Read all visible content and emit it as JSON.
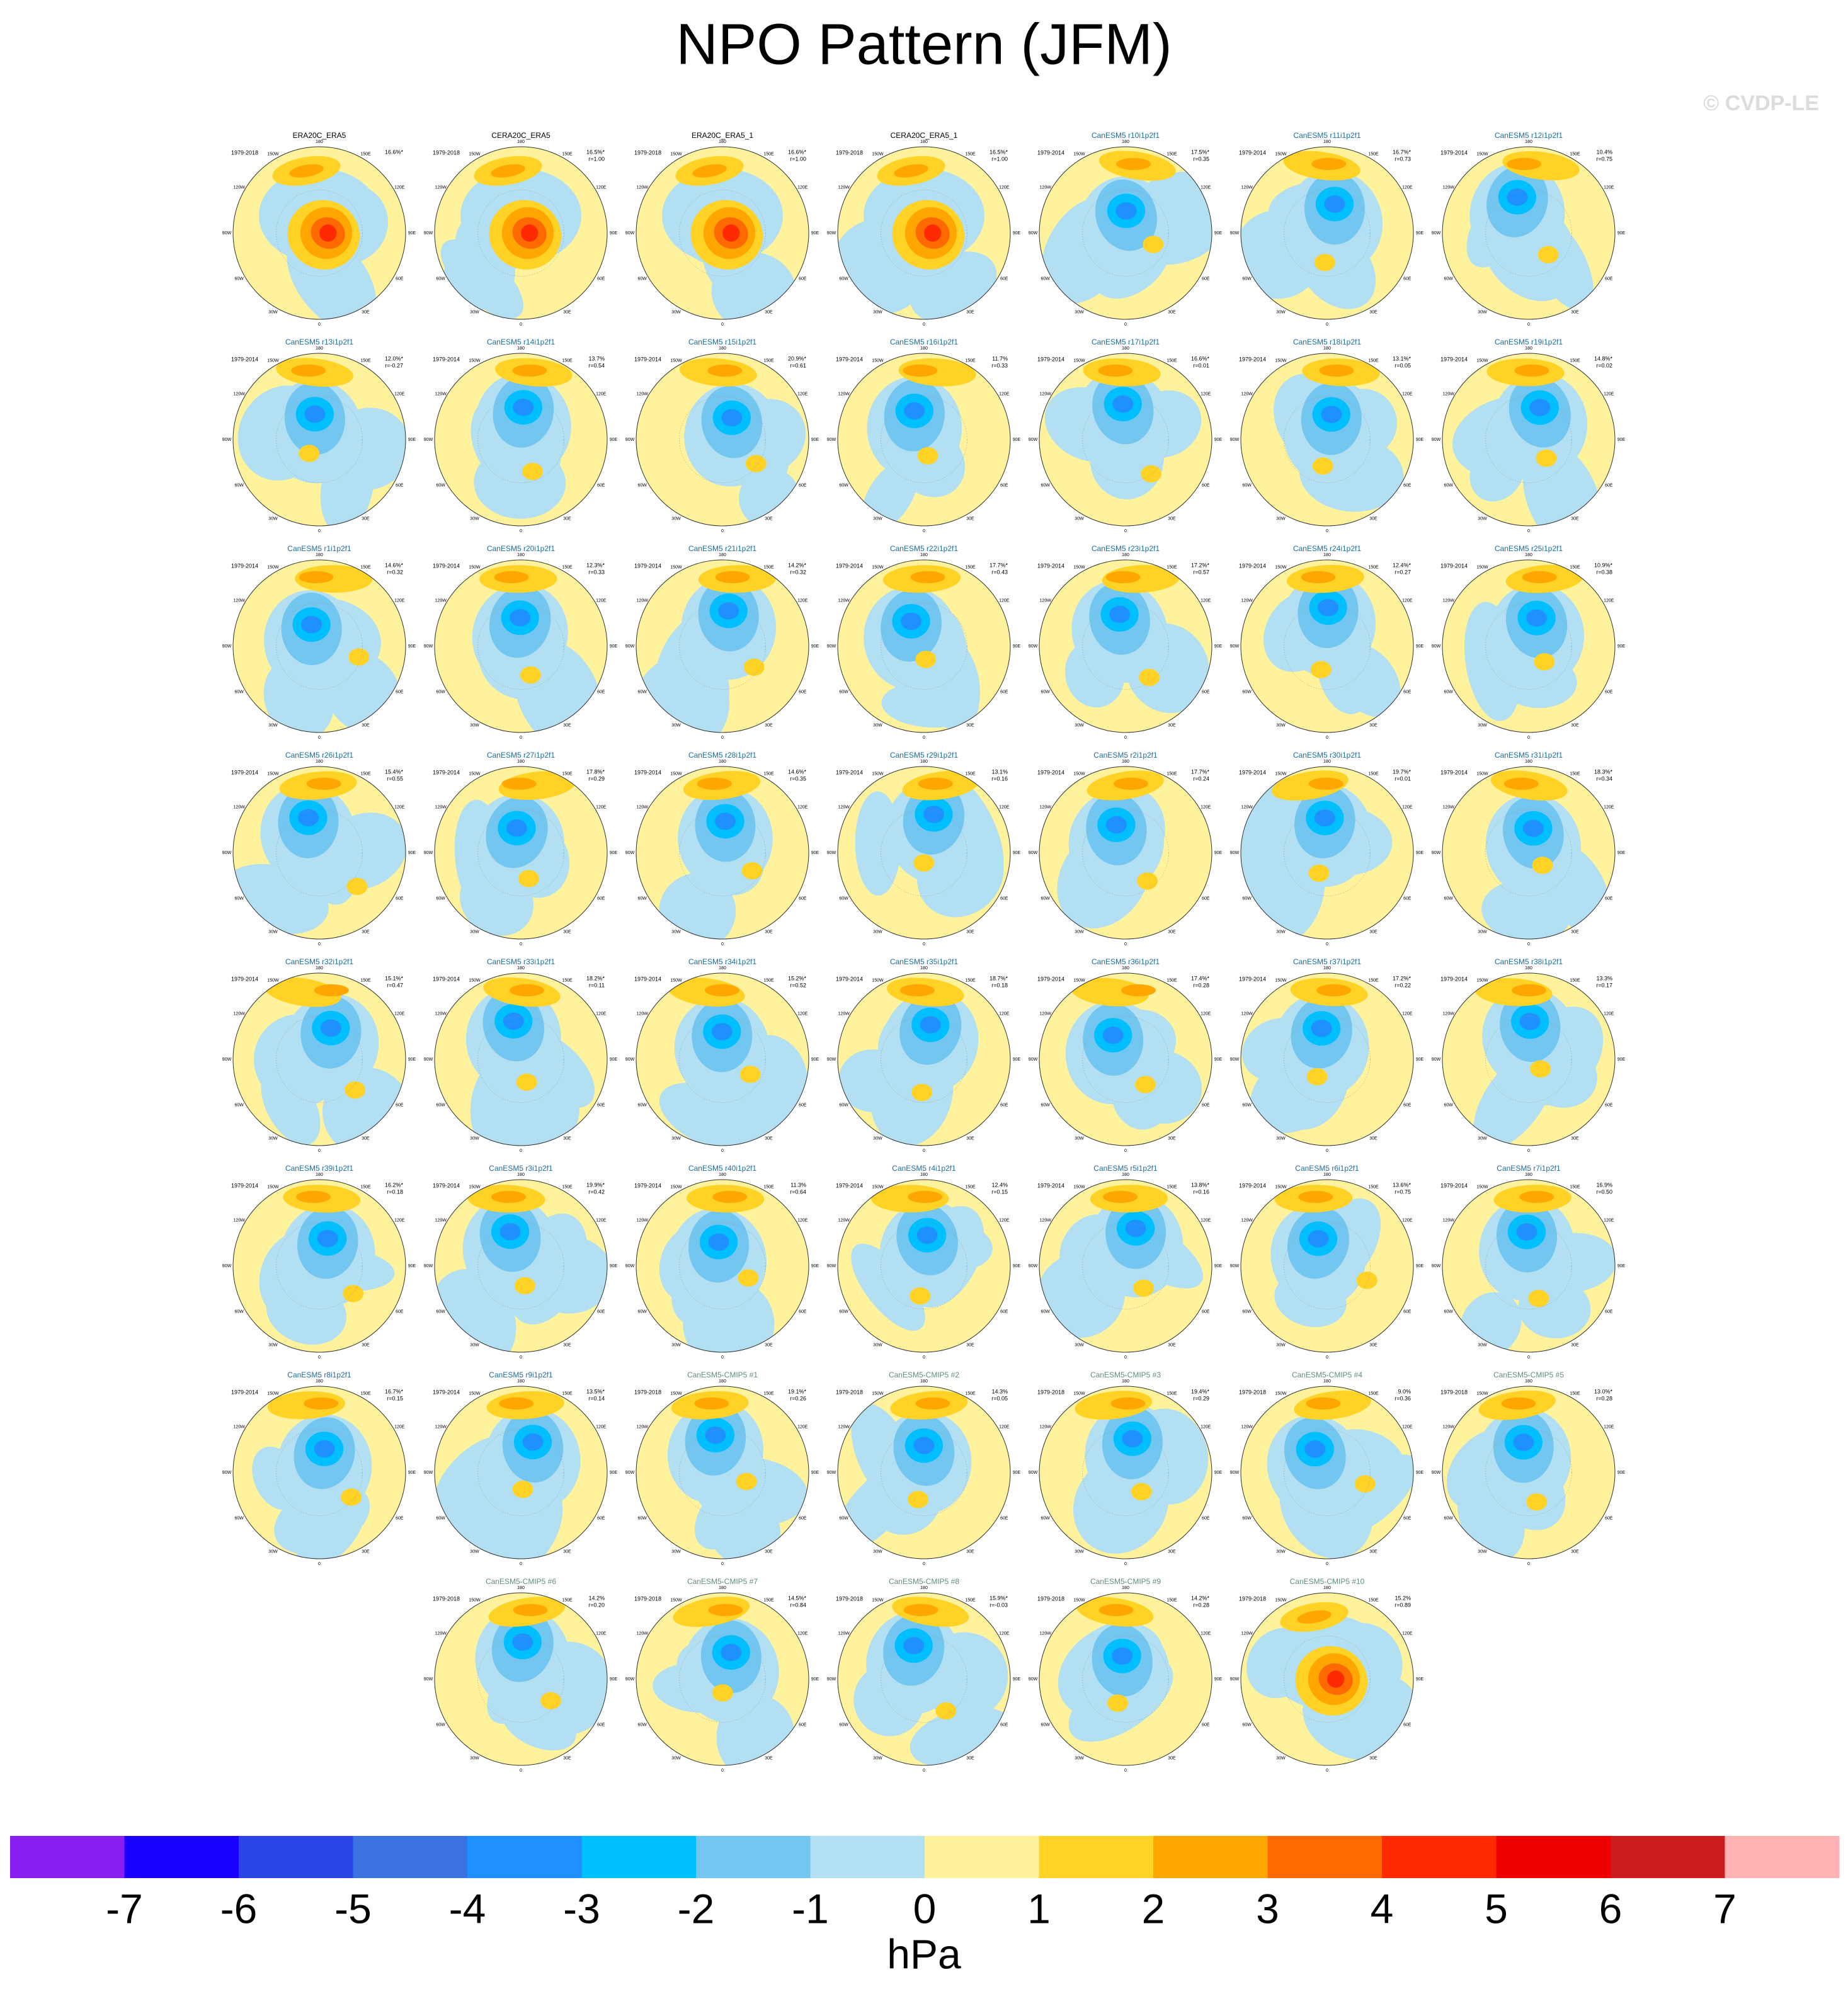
{
  "title": "NPO Pattern (JFM)",
  "copyright": "© CVDP-LE",
  "lon_labels": [
    "180",
    "150E",
    "120E",
    "90E",
    "60E",
    "30E",
    "0",
    "30W",
    "60W",
    "90W",
    "120W",
    "150W"
  ],
  "panels": [
    {
      "title": "ERA20C_ERA5",
      "color": "#000000",
      "years": "1979-2018",
      "pct": "16.6%*"
    },
    {
      "title": "CERA20C_ERA5",
      "color": "#000000",
      "years": "1979-2018",
      "pct": "16.5%*",
      "r": "r=1.00"
    },
    {
      "title": "ERA20C_ERA5_1",
      "color": "#000000",
      "years": "1979-2018",
      "pct": "16.6%*",
      "r": "r=1.00"
    },
    {
      "title": "CERA20C_ERA5_1",
      "color": "#000000",
      "years": "1979-2018",
      "pct": "16.5%*",
      "r": "r=1.00"
    },
    {
      "title": "CanESM5 r10i1p2f1",
      "color": "#1f6e9c",
      "years": "1979-2014",
      "pct": "17.5%*",
      "r": "r=0.35"
    },
    {
      "title": "CanESM5 r11i1p2f1",
      "color": "#1f6e9c",
      "years": "1979-2014",
      "pct": "16.7%*",
      "r": "r=0.73"
    },
    {
      "title": "CanESM5 r12i1p2f1",
      "color": "#1f6e9c",
      "years": "1979-2014",
      "pct": "10.4%",
      "r": "r=0.75"
    },
    {
      "title": "CanESM5 r13i1p2f1",
      "color": "#1f6e9c",
      "years": "1979-2014",
      "pct": "12.0%*",
      "r": "r=-0.27"
    },
    {
      "title": "CanESM5 r14i1p2f1",
      "color": "#1f6e9c",
      "years": "1979-2014",
      "pct": "13.7%",
      "r": "r=0.54"
    },
    {
      "title": "CanESM5 r15i1p2f1",
      "color": "#1f6e9c",
      "years": "1979-2014",
      "pct": "20.9%*",
      "r": "r=0.61"
    },
    {
      "title": "CanESM5 r16i1p2f1",
      "color": "#1f6e9c",
      "years": "1979-2014",
      "pct": "11.7%",
      "r": "r=0.33"
    },
    {
      "title": "CanESM5 r17i1p2f1",
      "color": "#1f6e9c",
      "years": "1979-2014",
      "pct": "16.6%*",
      "r": "r=0.01"
    },
    {
      "title": "CanESM5 r18i1p2f1",
      "color": "#1f6e9c",
      "years": "1979-2014",
      "pct": "13.1%*",
      "r": "r=0.05"
    },
    {
      "title": "CanESM5 r19i1p2f1",
      "color": "#1f6e9c",
      "years": "1979-2014",
      "pct": "14.8%*",
      "r": "r=0.02"
    },
    {
      "title": "CanESM5 r1i1p2f1",
      "color": "#1f6e9c",
      "years": "1979-2014",
      "pct": "14.6%*",
      "r": "r=0.32"
    },
    {
      "title": "CanESM5 r20i1p2f1",
      "color": "#1f6e9c",
      "years": "1979-2014",
      "pct": "12.3%*",
      "r": "r=0.33"
    },
    {
      "title": "CanESM5 r21i1p2f1",
      "color": "#1f6e9c",
      "years": "1979-2014",
      "pct": "14.2%*",
      "r": "r=0.32"
    },
    {
      "title": "CanESM5 r22i1p2f1",
      "color": "#1f6e9c",
      "years": "1979-2014",
      "pct": "17.7%*",
      "r": "r=0.43"
    },
    {
      "title": "CanESM5 r23i1p2f1",
      "color": "#1f6e9c",
      "years": "1979-2014",
      "pct": "17.2%*",
      "r": "r=0.57"
    },
    {
      "title": "CanESM5 r24i1p2f1",
      "color": "#1f6e9c",
      "years": "1979-2014",
      "pct": "12.4%*",
      "r": "r=0.27"
    },
    {
      "title": "CanESM5 r25i1p2f1",
      "color": "#1f6e9c",
      "years": "1979-2014",
      "pct": "10.9%*",
      "r": "r=0.38"
    },
    {
      "title": "CanESM5 r26i1p2f1",
      "color": "#1f6e9c",
      "years": "1979-2014",
      "pct": "15.4%*",
      "r": "r=0.55"
    },
    {
      "title": "CanESM5 r27i1p2f1",
      "color": "#1f6e9c",
      "years": "1979-2014",
      "pct": "17.8%*",
      "r": "r=0.29"
    },
    {
      "title": "CanESM5 r28i1p2f1",
      "color": "#1f6e9c",
      "years": "1979-2014",
      "pct": "14.6%*",
      "r": "r=0.35"
    },
    {
      "title": "CanESM5 r29i1p2f1",
      "color": "#1f6e9c",
      "years": "1979-2014",
      "pct": "13.1%",
      "r": "r=0.16"
    },
    {
      "title": "CanESM5 r2i1p2f1",
      "color": "#1f6e9c",
      "years": "1979-2014",
      "pct": "17.7%*",
      "r": "r=0.24"
    },
    {
      "title": "CanESM5 r30i1p2f1",
      "color": "#1f6e9c",
      "years": "1979-2014",
      "pct": "19.7%*",
      "r": "r=0.01"
    },
    {
      "title": "CanESM5 r31i1p2f1",
      "color": "#1f6e9c",
      "years": "1979-2014",
      "pct": "18.3%*",
      "r": "r=0.34"
    },
    {
      "title": "CanESM5 r32i1p2f1",
      "color": "#1f6e9c",
      "years": "1979-2014",
      "pct": "15.1%*",
      "r": "r=0.47"
    },
    {
      "title": "CanESM5 r33i1p2f1",
      "color": "#1f6e9c",
      "years": "1979-2014",
      "pct": "18.2%*",
      "r": "r=0.11"
    },
    {
      "title": "CanESM5 r34i1p2f1",
      "color": "#1f6e9c",
      "years": "1979-2014",
      "pct": "15.2%*",
      "r": "r=0.52"
    },
    {
      "title": "CanESM5 r35i1p2f1",
      "color": "#1f6e9c",
      "years": "1979-2014",
      "pct": "18.7%*",
      "r": "r=0.18"
    },
    {
      "title": "CanESM5 r36i1p2f1",
      "color": "#1f6e9c",
      "years": "1979-2014",
      "pct": "17.4%*",
      "r": "r=0.28"
    },
    {
      "title": "CanESM5 r37i1p2f1",
      "color": "#1f6e9c",
      "years": "1979-2014",
      "pct": "17.2%*",
      "r": "r=0.22"
    },
    {
      "title": "CanESM5 r38i1p2f1",
      "color": "#1f6e9c",
      "years": "1979-2014",
      "pct": "13.3%",
      "r": "r=0.17"
    },
    {
      "title": "CanESM5 r39i1p2f1",
      "color": "#1f6e9c",
      "years": "1979-2014",
      "pct": "16.2%*",
      "r": "r=0.18"
    },
    {
      "title": "CanESM5 r3i1p2f1",
      "color": "#1f6e9c",
      "years": "1979-2014",
      "pct": "19.9%*",
      "r": "r=0.42"
    },
    {
      "title": "CanESM5 r40i1p2f1",
      "color": "#1f6e9c",
      "years": "1979-2014",
      "pct": "11.3%",
      "r": "r=0.64"
    },
    {
      "title": "CanESM5 r4i1p2f1",
      "color": "#1f6e9c",
      "years": "1979-2014",
      "pct": "12.4%",
      "r": "r=0.15"
    },
    {
      "title": "CanESM5 r5i1p2f1",
      "color": "#1f6e9c",
      "years": "1979-2014",
      "pct": "13.8%*",
      "r": "r=0.16"
    },
    {
      "title": "CanESM5 r6i1p2f1",
      "color": "#1f6e9c",
      "years": "1979-2014",
      "pct": "13.6%*",
      "r": "r=0.75"
    },
    {
      "title": "CanESM5 r7i1p2f1",
      "color": "#1f6e9c",
      "years": "1979-2014",
      "pct": "16.9%",
      "r": "r=0.50"
    },
    {
      "title": "CanESM5 r8i1p2f1",
      "color": "#1f6e9c",
      "years": "1979-2014",
      "pct": "16.7%*",
      "r": "r=0.15"
    },
    {
      "title": "CanESM5 r9i1p2f1",
      "color": "#1f6e9c",
      "years": "1979-2014",
      "pct": "13.5%*",
      "r": "r=0.14"
    },
    {
      "title": "CanESM5-CMIP5 #1",
      "color": "#5e8f7a",
      "years": "1979-2018",
      "pct": "19.1%*",
      "r": "r=0.26"
    },
    {
      "title": "CanESM5-CMIP5 #2",
      "color": "#5e8f7a",
      "years": "1979-2018",
      "pct": "14.3%",
      "r": "r=0.05"
    },
    {
      "title": "CanESM5-CMIP5 #3",
      "color": "#5e8f7a",
      "years": "1979-2018",
      "pct": "19.4%*",
      "r": "r=0.29"
    },
    {
      "title": "CanESM5-CMIP5 #4",
      "color": "#5e8f7a",
      "years": "1979-2018",
      "pct": "9.0%",
      "r": "r=0.36"
    },
    {
      "title": "CanESM5-CMIP5 #5",
      "color": "#5e8f7a",
      "years": "1979-2018",
      "pct": "13.0%*",
      "r": "r=0.28"
    },
    {
      "title": "CanESM5-CMIP5 #6",
      "color": "#5e8f7a",
      "years": "1979-2018",
      "pct": "14.2%",
      "r": "r=0.20"
    },
    {
      "title": "CanESM5-CMIP5 #7",
      "color": "#5e8f7a",
      "years": "1979-2018",
      "pct": "14.5%*",
      "r": "r=0.84"
    },
    {
      "title": "CanESM5-CMIP5 #8",
      "color": "#5e8f7a",
      "years": "1979-2018",
      "pct": "15.9%*",
      "r": "r=-0.03"
    },
    {
      "title": "CanESM5-CMIP5 #9",
      "color": "#5e8f7a",
      "years": "1979-2018",
      "pct": "14.2%*",
      "r": "r=0.28"
    },
    {
      "title": "CanESM5-CMIP5 #10",
      "color": "#5e8f7a",
      "years": "1979-2018",
      "pct": "15.2%",
      "r": "r=0.89"
    }
  ],
  "colorbar": {
    "colors": [
      "#8a1ef0",
      "#1a00ff",
      "#2a44e6",
      "#3a72e0",
      "#1e90ff",
      "#00bfff",
      "#72c6f0",
      "#b2dff2",
      "#fff29c",
      "#ffd225",
      "#ffa600",
      "#ff6a00",
      "#ff2a00",
      "#ee0000",
      "#cc1c1c",
      "#ffb3b3"
    ],
    "lim": [
      -8,
      8
    ],
    "ticks": [
      -7,
      -6,
      -5,
      -4,
      -3,
      -2,
      -1,
      0,
      1,
      2,
      3,
      4,
      5,
      6,
      7
    ],
    "label": "hPa"
  }
}
